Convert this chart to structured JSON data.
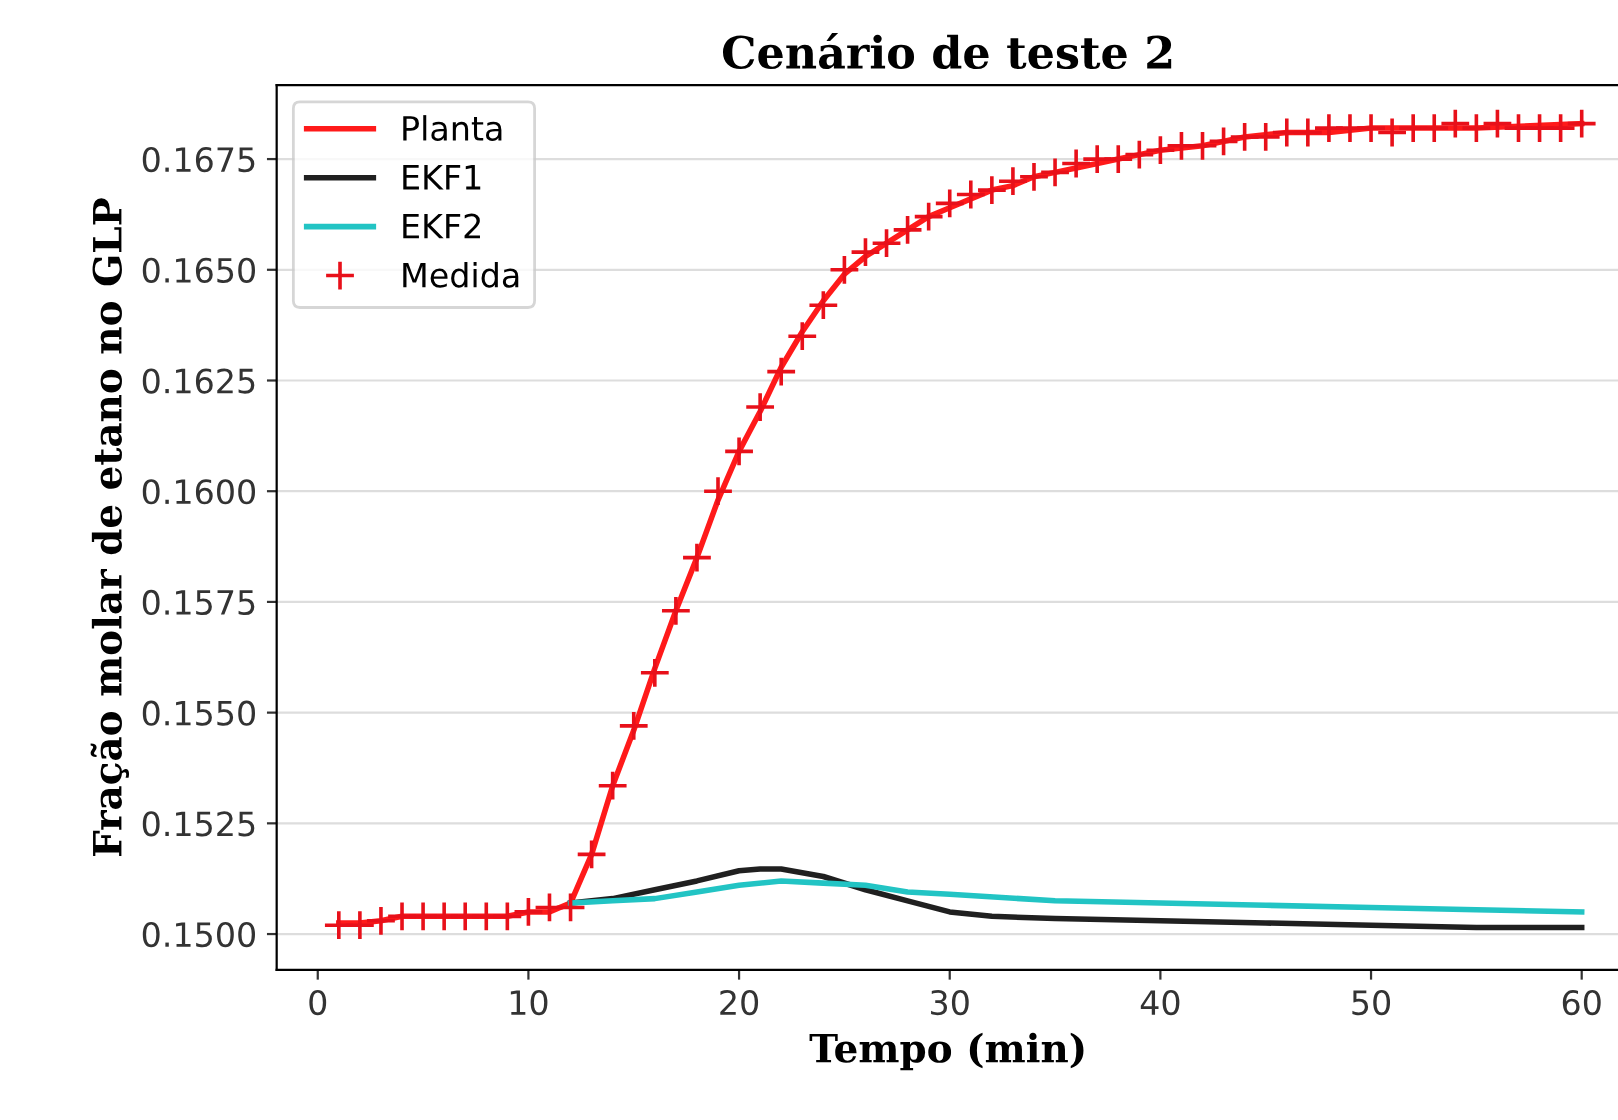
{
  "chart_data": {
    "type": "line",
    "title": "Cenário de teste 2",
    "xlabel": "Tempo (min)",
    "ylabel": "Fração molar de etano no GLP",
    "xlim": [
      -1.95,
      61.8
    ],
    "xticks": [
      0,
      10,
      20,
      30,
      40,
      50,
      60
    ],
    "ylim": [
      0.14919,
      0.16917
    ],
    "yticks": [
      {
        "value": 0.15,
        "label": "0.1500"
      },
      {
        "value": 0.1525,
        "label": "0.1525"
      },
      {
        "value": 0.155,
        "label": "0.1550"
      },
      {
        "value": 0.1575,
        "label": "0.1575"
      },
      {
        "value": 0.16,
        "label": "0.1600"
      },
      {
        "value": 0.1625,
        "label": "0.1625"
      },
      {
        "value": 0.165,
        "label": "0.1650"
      },
      {
        "value": 0.1675,
        "label": "0.1675"
      }
    ],
    "grid": "y",
    "legend": "top left",
    "series": [
      {
        "name": "Planta",
        "color": "#ff1a1a",
        "x": [
          1,
          2,
          3,
          4,
          5,
          6,
          7,
          8,
          9,
          10,
          11,
          12,
          13,
          14,
          15,
          16,
          17,
          18,
          19,
          20,
          21,
          22,
          23,
          24,
          25,
          26,
          27,
          28,
          29,
          30,
          31,
          32,
          33,
          34,
          35,
          36,
          37,
          38,
          39,
          40,
          42,
          44,
          46,
          48,
          50,
          55,
          60
        ],
        "values": [
          0.15025,
          0.15025,
          0.1503,
          0.1504,
          0.1504,
          0.1504,
          0.1504,
          0.1504,
          0.1504,
          0.1505,
          0.1505,
          0.1507,
          0.1518,
          0.15335,
          0.1546,
          0.156,
          0.1573,
          0.1585,
          0.1598,
          0.1609,
          0.1618,
          0.1628,
          0.1636,
          0.1643,
          0.1649,
          0.1653,
          0.1656,
          0.1659,
          0.1662,
          0.1664,
          0.1666,
          0.1668,
          0.1669,
          0.1671,
          0.1672,
          0.1673,
          0.1674,
          0.1675,
          0.1676,
          0.1677,
          0.1678,
          0.168,
          0.1681,
          0.1681,
          0.1682,
          0.1682,
          0.1683
        ]
      },
      {
        "name": "EKF1",
        "color": "#202020",
        "x": [
          12,
          14,
          16,
          18,
          20,
          21,
          22,
          24,
          26,
          28,
          30,
          32,
          35,
          40,
          45,
          50,
          55,
          60
        ],
        "values": [
          0.1507,
          0.1508,
          0.151,
          0.1512,
          0.15143,
          0.15147,
          0.15147,
          0.1513,
          0.151,
          0.15075,
          0.1505,
          0.1504,
          0.15035,
          0.1503,
          0.15025,
          0.1502,
          0.15015,
          0.15015
        ]
      },
      {
        "name": "EKF2",
        "color": "#22c4c4",
        "x": [
          12,
          14,
          16,
          18,
          20,
          22,
          24,
          26,
          28,
          30,
          35,
          40,
          45,
          50,
          55,
          60
        ],
        "values": [
          0.1507,
          0.15075,
          0.1508,
          0.15095,
          0.1511,
          0.1512,
          0.15115,
          0.1511,
          0.15095,
          0.1509,
          0.15075,
          0.1507,
          0.15065,
          0.1506,
          0.15055,
          0.1505
        ]
      },
      {
        "name": "Medida",
        "color": "#e8101a",
        "type": "scatter",
        "marker": "cross",
        "x": [
          1,
          2,
          3,
          4,
          5,
          6,
          7,
          8,
          9,
          10,
          11,
          12,
          13,
          14,
          15,
          16,
          17,
          18,
          19,
          20,
          21,
          22,
          23,
          24,
          25,
          26,
          27,
          28,
          29,
          30,
          31,
          32,
          33,
          34,
          35,
          36,
          37,
          38,
          39,
          40,
          41,
          42,
          43,
          44,
          45,
          46,
          47,
          48,
          49,
          50,
          51,
          52,
          53,
          54,
          55,
          56,
          57,
          58,
          59,
          60
        ],
        "values": [
          0.1502,
          0.1502,
          0.1503,
          0.1504,
          0.1504,
          0.1504,
          0.1504,
          0.1504,
          0.1504,
          0.1505,
          0.1506,
          0.1506,
          0.1518,
          0.15335,
          0.1547,
          0.1559,
          0.1573,
          0.1585,
          0.16,
          0.1609,
          0.1619,
          0.1627,
          0.1635,
          0.1642,
          0.165,
          0.1654,
          0.1656,
          0.1659,
          0.1662,
          0.1665,
          0.1667,
          0.1668,
          0.167,
          0.1671,
          0.1672,
          0.1674,
          0.1675,
          0.1675,
          0.1676,
          0.1677,
          0.1678,
          0.1678,
          0.1679,
          0.168,
          0.168,
          0.1681,
          0.1681,
          0.1682,
          0.1682,
          0.1682,
          0.1681,
          0.1682,
          0.1682,
          0.1683,
          0.1682,
          0.1683,
          0.1682,
          0.1682,
          0.1682,
          0.1683
        ]
      }
    ]
  }
}
